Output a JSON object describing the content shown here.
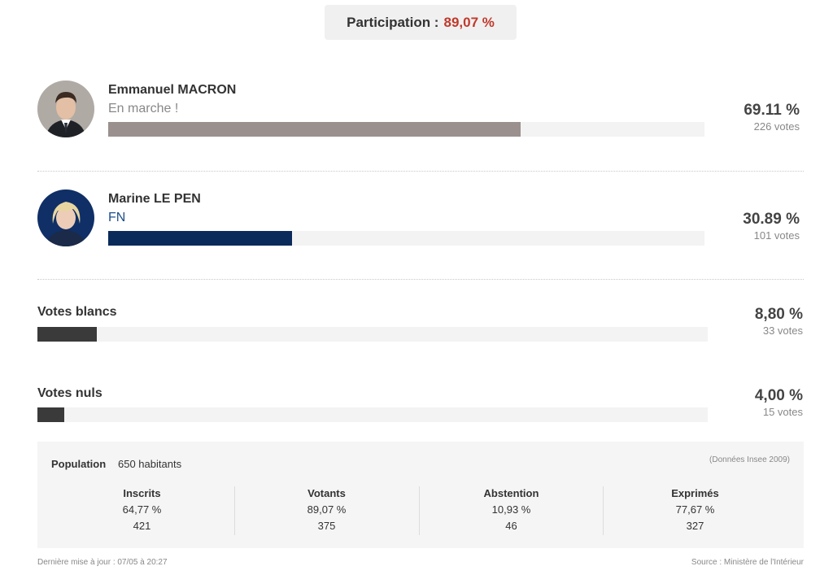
{
  "participation": {
    "label": "Participation :",
    "value": "89,07 %",
    "value_color": "#c0392b"
  },
  "candidates": [
    {
      "name": "Emmanuel MACRON",
      "party": "En marche !",
      "party_color": "#888888",
      "percent_label": "69.11 %",
      "votes_label": "226 votes",
      "bar_fraction": 0.6911,
      "bar_color": "#9a908d",
      "avatar_icon": "portrait-macron-icon"
    },
    {
      "name": "Marine LE PEN",
      "party": "FN",
      "party_color": "#1f4e8c",
      "percent_label": "30.89 %",
      "votes_label": "101 votes",
      "bar_fraction": 0.3089,
      "bar_color": "#0b2a5c",
      "avatar_icon": "portrait-lepen-icon"
    }
  ],
  "others": [
    {
      "label": "Votes blancs",
      "percent_label": "8,80 %",
      "votes_label": "33 votes",
      "bar_fraction": 0.088,
      "bar_color": "#3a3a3a"
    },
    {
      "label": "Votes nuls",
      "percent_label": "4,00 %",
      "votes_label": "15 votes",
      "bar_fraction": 0.04,
      "bar_color": "#3a3a3a"
    }
  ],
  "stats": {
    "population_label": "Population",
    "population_value": "650 habitants",
    "source_note": "(Données Insee 2009)",
    "columns": [
      {
        "label": "Inscrits",
        "percent": "64,77 %",
        "count": "421"
      },
      {
        "label": "Votants",
        "percent": "89,07 %",
        "count": "375"
      },
      {
        "label": "Abstention",
        "percent": "10,93 %",
        "count": "46"
      },
      {
        "label": "Exprimés",
        "percent": "77,67 %",
        "count": "327"
      }
    ]
  },
  "footer": {
    "updated": "Dernière mise à jour : 07/05 à 20:27",
    "source": "Source : Ministère de l'Intérieur"
  }
}
